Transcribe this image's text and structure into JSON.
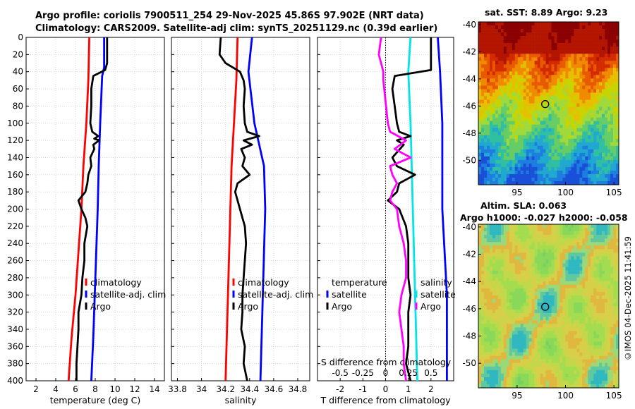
{
  "titles": {
    "line1": "Argo profile: coriolis 7900511_254 29-Nov-2025 45.86S 97.902E (NRT data)",
    "line2": "Climatology: CARS2009. Satellite-adj clim: synTS_20251129.nc (0.39d earlier)"
  },
  "watermark": "©IMOS 04-Dec-2025 11:41:59",
  "colors": {
    "argo": "#000000",
    "climatology": "#ff0000",
    "satellite": "#0000ff",
    "tdiff": "#000000",
    "sdiff": "#ff00ff",
    "tdiff_sat": "#0000ff",
    "sdiff_sat": "#00e5e5"
  },
  "chart_data": [
    {
      "type": "line",
      "id": "temp",
      "xlabel": "temperature (deg C)",
      "ylabel": "",
      "xlim": [
        1,
        15
      ],
      "ylim": [
        400,
        0
      ],
      "xticks": [
        2,
        4,
        6,
        8,
        10,
        12,
        14
      ],
      "yticks": [
        0,
        20,
        40,
        60,
        80,
        100,
        120,
        140,
        160,
        180,
        200,
        220,
        240,
        260,
        280,
        300,
        320,
        340,
        360,
        380,
        400
      ],
      "legend": [
        "climatology",
        "satellite-adj. clim",
        "Argo"
      ],
      "series": [
        {
          "name": "climatology",
          "depth": [
            0,
            50,
            100,
            150,
            200,
            250,
            300,
            350,
            400
          ],
          "values": [
            7.4,
            7.3,
            7.1,
            6.8,
            6.6,
            6.3,
            6.0,
            5.6,
            5.3
          ]
        },
        {
          "name": "satellite-adj. clim",
          "depth": [
            0,
            35,
            45,
            100,
            150,
            200,
            250,
            300,
            350,
            400
          ],
          "values": [
            8.9,
            8.9,
            8.7,
            8.5,
            8.35,
            8.25,
            8.1,
            7.95,
            7.8,
            7.6
          ]
        },
        {
          "name": "Argo",
          "depth": [
            0,
            30,
            38,
            45,
            60,
            80,
            100,
            110,
            115,
            118,
            120,
            125,
            130,
            140,
            150,
            160,
            170,
            180,
            190,
            200,
            210,
            220,
            240,
            260,
            280,
            300,
            320,
            340,
            360,
            380,
            400
          ],
          "values": [
            9.2,
            9.2,
            9.0,
            7.8,
            7.6,
            7.6,
            7.5,
            7.7,
            8.3,
            7.9,
            8.4,
            7.8,
            7.9,
            7.5,
            7.6,
            7.3,
            7.2,
            7.0,
            6.3,
            6.6,
            7.0,
            7.2,
            6.9,
            6.9,
            6.7,
            6.6,
            6.3,
            6.3,
            6.2,
            6.1,
            6.1
          ]
        }
      ]
    },
    {
      "type": "line",
      "id": "sal",
      "xlabel": "salinity",
      "ylabel": "",
      "xlim": [
        33.75,
        34.9
      ],
      "ylim": [
        400,
        0
      ],
      "xticks": [
        33.8,
        34,
        34.2,
        34.4,
        34.6,
        34.8
      ],
      "yticks": [
        0,
        20,
        40,
        60,
        80,
        100,
        120,
        140,
        160,
        180,
        200,
        220,
        240,
        260,
        280,
        300,
        320,
        340,
        360,
        380,
        400
      ],
      "legend": [
        "climatology",
        "satellite-adj. clim",
        "Argo"
      ],
      "series": [
        {
          "name": "climatology",
          "depth": [
            0,
            50,
            100,
            150,
            200,
            250,
            300,
            350,
            400
          ],
          "values": [
            34.3,
            34.29,
            34.27,
            34.25,
            34.24,
            34.23,
            34.22,
            34.21,
            34.2
          ]
        },
        {
          "name": "satellite-adj. clim",
          "depth": [
            0,
            40,
            100,
            150,
            200,
            250,
            300,
            350,
            400
          ],
          "values": [
            34.42,
            34.39,
            34.44,
            34.52,
            34.53,
            34.52,
            34.51,
            34.5,
            34.49
          ]
        },
        {
          "name": "Argo",
          "depth": [
            0,
            20,
            30,
            40,
            50,
            60,
            80,
            100,
            110,
            115,
            120,
            125,
            130,
            140,
            150,
            160,
            170,
            180,
            190,
            200,
            220,
            240,
            260,
            280,
            300,
            320,
            340,
            360,
            380,
            400
          ],
          "values": [
            34.16,
            34.15,
            34.2,
            34.32,
            34.35,
            34.36,
            34.35,
            34.36,
            34.38,
            34.48,
            34.35,
            34.42,
            34.33,
            34.36,
            34.34,
            34.4,
            34.3,
            34.28,
            34.3,
            34.32,
            34.36,
            34.37,
            34.36,
            34.35,
            34.34,
            34.34,
            34.33,
            34.36,
            34.35,
            34.38
          ]
        }
      ]
    },
    {
      "type": "line",
      "id": "diff",
      "xlabel": "T difference from climatology",
      "top_xlabel": "S difference from climatology",
      "xlim": [
        -3,
        3
      ],
      "ylim": [
        400,
        0
      ],
      "xticks": [
        -2,
        -1,
        0,
        1,
        2
      ],
      "top_ticks": [
        {
          "label": "-0.5",
          "value": -2
        },
        {
          "label": "-0.25",
          "value": -1
        },
        {
          "label": "0",
          "value": 0
        },
        {
          "label": "0.25",
          "value": 1
        },
        {
          "label": "0.5",
          "value": 2
        }
      ],
      "yticks": [
        0,
        20,
        40,
        60,
        80,
        100,
        120,
        140,
        160,
        180,
        200,
        220,
        240,
        260,
        280,
        300,
        320,
        340,
        360,
        380,
        400
      ],
      "legend_left": {
        "title": "temperature",
        "items": [
          "satellite",
          "Argo"
        ]
      },
      "legend_right": {
        "title": "salinity",
        "items": [
          "satellite",
          "Argo"
        ]
      },
      "series": [
        {
          "name": "T satellite",
          "depth": [
            0,
            40,
            100,
            200,
            300,
            400
          ],
          "values": [
            2.3,
            2.4,
            2.5,
            2.5,
            2.7,
            2.7
          ]
        },
        {
          "name": "S satellite",
          "depth": [
            0,
            40,
            100,
            200,
            300,
            400
          ],
          "values": [
            1.1,
            1.0,
            1.1,
            1.2,
            1.3,
            1.4
          ]
        },
        {
          "name": "T Argo",
          "depth": [
            0,
            38,
            45,
            60,
            80,
            100,
            110,
            115,
            120,
            125,
            140,
            150,
            160,
            170,
            180,
            190,
            200,
            220,
            240,
            260,
            280,
            300,
            320,
            340,
            360,
            380,
            400
          ],
          "values": [
            2.0,
            2.0,
            0.4,
            0.3,
            0.4,
            0.5,
            0.6,
            1.1,
            0.5,
            0.8,
            0.3,
            0.5,
            1.3,
            0.6,
            0.5,
            0.1,
            0.6,
            0.9,
            1.0,
            1.0,
            1.0,
            1.1,
            1.0,
            1.0,
            1.0,
            0.9,
            1.1
          ]
        },
        {
          "name": "S Argo",
          "depth": [
            0,
            20,
            40,
            50,
            100,
            110,
            120,
            130,
            140,
            150,
            160,
            170,
            180,
            190,
            200,
            220,
            240,
            260,
            280,
            300,
            320,
            340,
            360,
            380,
            400
          ],
          "values": [
            -0.2,
            -0.3,
            -0.1,
            -0.1,
            0.1,
            0.2,
            0.9,
            0.4,
            1.1,
            0.2,
            0.3,
            0.5,
            0.3,
            0.2,
            0.5,
            0.6,
            0.8,
            0.9,
            0.9,
            0.7,
            0.6,
            0.7,
            0.8,
            0.8,
            0.9
          ]
        }
      ]
    },
    {
      "type": "heatmap",
      "id": "sst",
      "title": "sat. SST: 8.89 Argo: 9.23",
      "xticks": [
        95,
        100,
        105
      ],
      "yticks": [
        -40,
        -42,
        -44,
        -46,
        -48,
        -50
      ],
      "xlim": [
        91,
        105.5
      ],
      "ylim": [
        -51.8,
        -39.8
      ],
      "marker": {
        "lon": 97.9,
        "lat": -45.86
      }
    },
    {
      "type": "heatmap",
      "id": "sla",
      "title1": "Altim. SLA: 0.063",
      "title2": "Argo h1000: -0.027 h2000: -0.058",
      "xticks": [
        95,
        100,
        105
      ],
      "yticks": [
        -40,
        -42,
        -44,
        -46,
        -48,
        -50
      ],
      "xlim": [
        91,
        105.5
      ],
      "ylim": [
        -51.8,
        -39.8
      ],
      "marker": {
        "lon": 97.9,
        "lat": -45.86
      }
    }
  ]
}
